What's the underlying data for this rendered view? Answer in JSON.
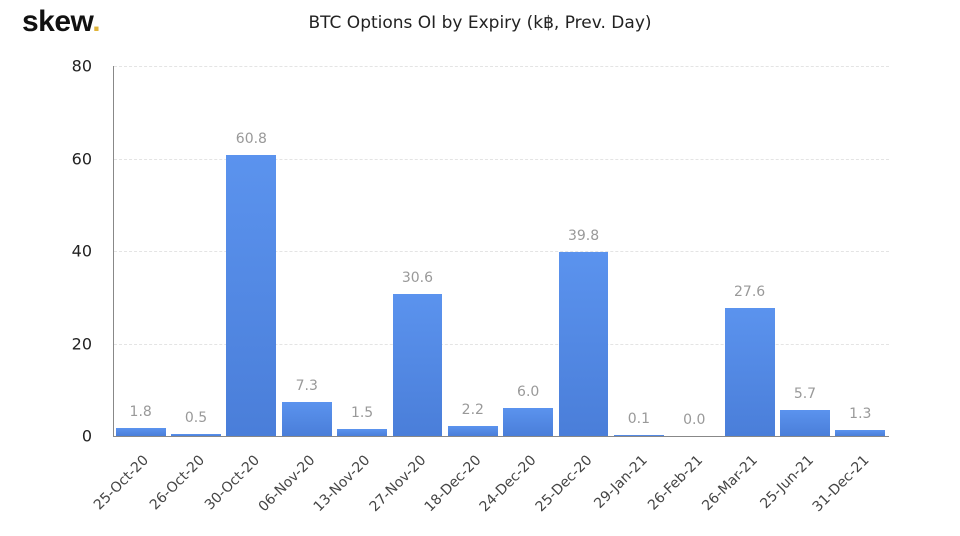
{
  "logo": {
    "text": "skew",
    "dot": "."
  },
  "chart_data": {
    "type": "bar",
    "title": "BTC Options OI by Expiry (k฿, Prev. Day)",
    "xlabel": "",
    "ylabel": "",
    "ylim": [
      0,
      80
    ],
    "yticks": [
      "0",
      "20",
      "40",
      "60",
      "80"
    ],
    "grid": true,
    "legend": null,
    "bar_color": "#5b8fe8",
    "categories": [
      "25-Oct-20",
      "26-Oct-20",
      "30-Oct-20",
      "06-Nov-20",
      "13-Nov-20",
      "27-Nov-20",
      "18-Dec-20",
      "24-Dec-20",
      "25-Dec-20",
      "29-Jan-21",
      "26-Feb-21",
      "26-Mar-21",
      "25-Jun-21",
      "31-Dec-21"
    ],
    "values": [
      1.8,
      0.5,
      60.8,
      7.3,
      1.5,
      30.6,
      2.2,
      6.0,
      39.8,
      0.1,
      0.0,
      27.6,
      5.7,
      1.3
    ],
    "value_labels": [
      "1.8",
      "0.5",
      "60.8",
      "7.3",
      "1.5",
      "30.6",
      "2.2",
      "6.0",
      "39.8",
      "0.1",
      "0.0",
      "27.6",
      "5.7",
      "1.3"
    ]
  }
}
